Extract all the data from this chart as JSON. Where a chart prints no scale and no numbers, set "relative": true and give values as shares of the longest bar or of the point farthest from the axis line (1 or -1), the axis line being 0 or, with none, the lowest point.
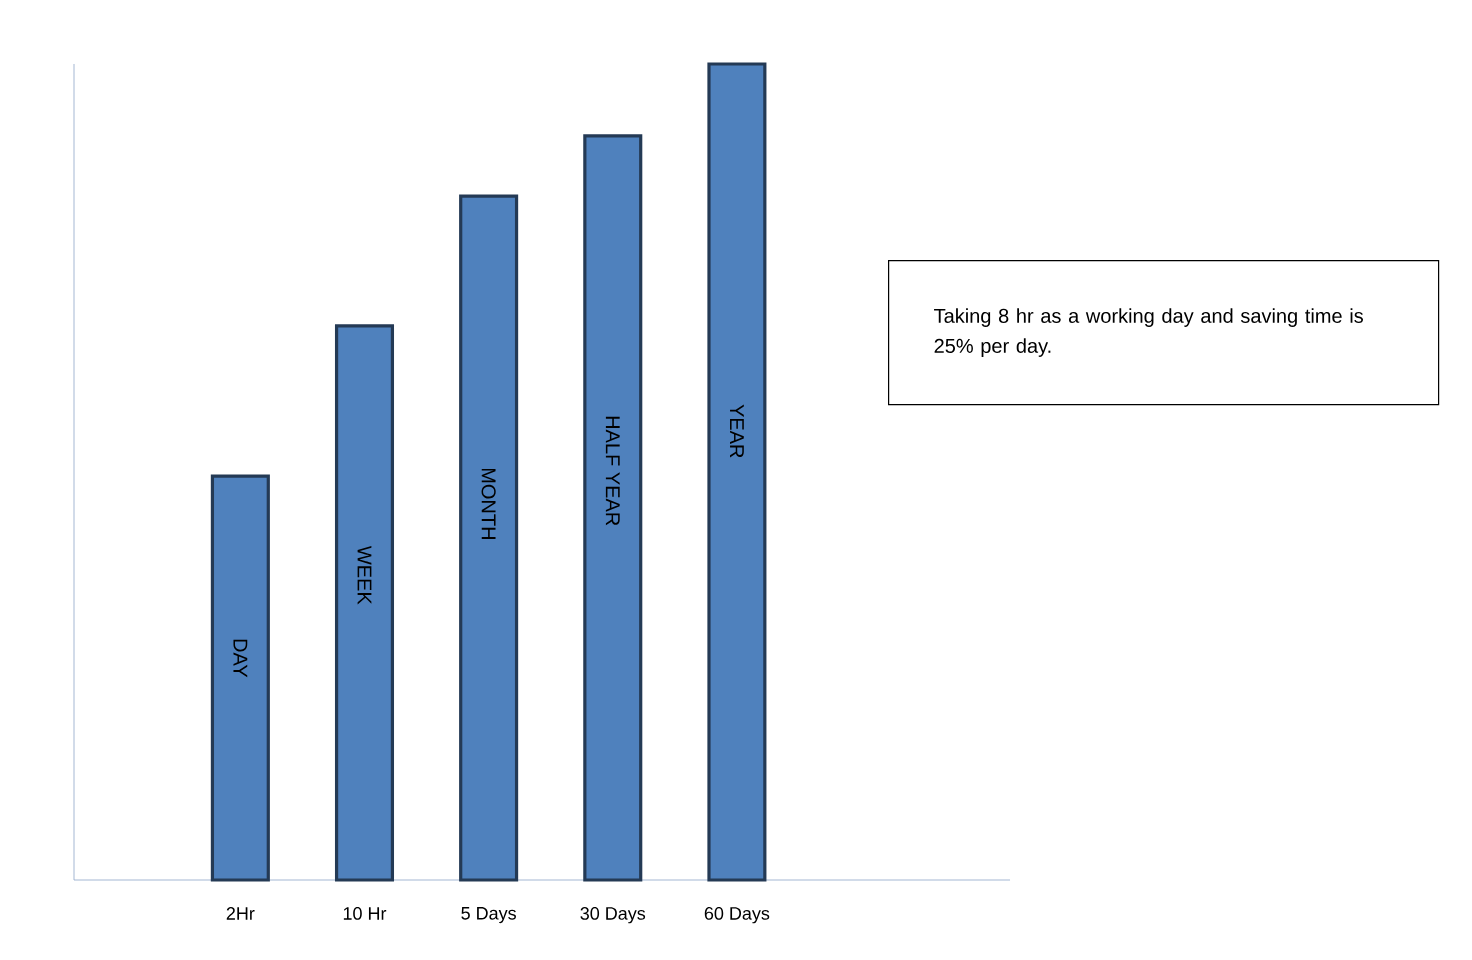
{
  "chart_data": {
    "type": "bar",
    "relative": true,
    "categories": [
      "2Hr",
      "10 Hr",
      "5 Days",
      "30 Days",
      "60 Days"
    ],
    "values": [
      0.495,
      0.679,
      0.838,
      0.912,
      1
    ],
    "color": "#4f81bd",
    "annotations": [
      "DAY",
      "WEEK",
      "MONTH",
      "HALF YEAR",
      "YEAR",
      "Taking 8 hr as a working day and saving time is 25% per day."
    ]
  }
}
